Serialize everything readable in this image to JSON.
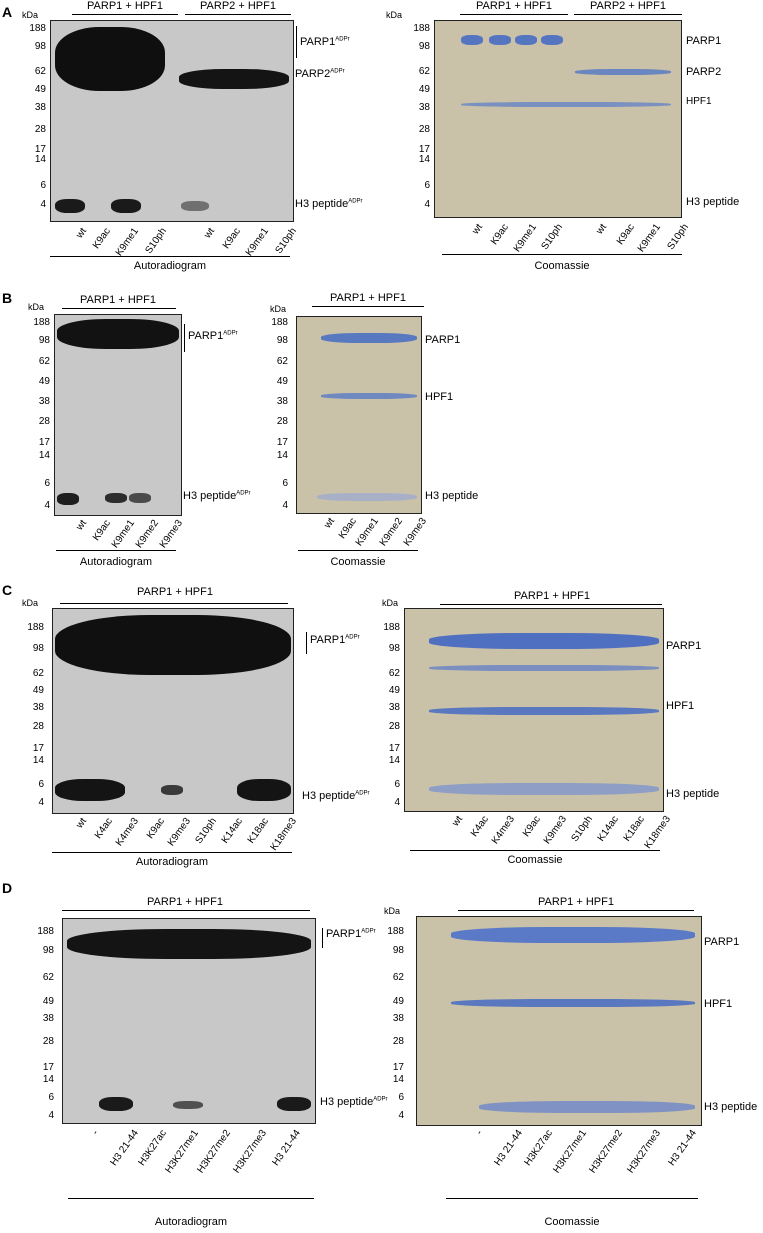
{
  "panels": [
    {
      "letter": "A",
      "left": {
        "kda": "kDa",
        "markers": [
          "188",
          "98",
          "62",
          "49",
          "38",
          "28",
          "17",
          "14",
          "6",
          "4"
        ],
        "headers": [
          "PARP1 + HPF1",
          "PARP2 + HPF1"
        ],
        "labels": [
          "PARP1",
          "PARP2",
          "H3 peptide"
        ],
        "label_sup": "ADPr",
        "lanes": [
          "wt",
          "K9ac",
          "K9me1",
          "S10ph",
          "wt",
          "K9ac",
          "K9me1",
          "S10ph"
        ],
        "footer": "Autoradiogram"
      },
      "right": {
        "kda": "kDa",
        "markers": [
          "188",
          "98",
          "62",
          "49",
          "38",
          "28",
          "17",
          "14",
          "6",
          "4"
        ],
        "headers": [
          "PARP1 + HPF1",
          "PARP2 + HPF1"
        ],
        "labels": [
          "PARP1",
          "PARP2",
          "HPF1",
          "H3 peptide"
        ],
        "lanes": [
          "wt",
          "K9ac",
          "K9me1",
          "S10ph",
          "wt",
          "K9ac",
          "K9me1",
          "S10ph"
        ],
        "footer": "Coomassie"
      }
    },
    {
      "letter": "B",
      "left": {
        "kda": "kDa",
        "markers": [
          "188",
          "98",
          "62",
          "49",
          "38",
          "28",
          "17",
          "14",
          "6",
          "4"
        ],
        "headers": [
          "PARP1 + HPF1"
        ],
        "labels": [
          "PARP1",
          "H3 peptide"
        ],
        "label_sup": "ADPr",
        "lanes": [
          "wt",
          "K9ac",
          "K9me1",
          "K9me2",
          "K9me3"
        ],
        "footer": "Autoradiogram"
      },
      "right": {
        "kda": "kDa",
        "markers": [
          "188",
          "98",
          "62",
          "49",
          "38",
          "28",
          "17",
          "14",
          "6",
          "4"
        ],
        "headers": [
          "PARP1 + HPF1"
        ],
        "labels": [
          "PARP1",
          "HPF1",
          "H3 peptide"
        ],
        "lanes": [
          "wt",
          "K9ac",
          "K9me1",
          "K9me2",
          "K9me3"
        ],
        "footer": "Coomassie"
      }
    },
    {
      "letter": "C",
      "left": {
        "kda": "kDa",
        "markers": [
          "188",
          "98",
          "62",
          "49",
          "38",
          "28",
          "17",
          "14",
          "6",
          "4"
        ],
        "headers": [
          "PARP1 + HPF1"
        ],
        "labels": [
          "PARP1",
          "H3 peptide"
        ],
        "label_sup": "ADPr",
        "lanes": [
          "wt",
          "K4ac",
          "K4me3",
          "K9ac",
          "K9me3",
          "S10ph",
          "K14ac",
          "K18ac",
          "K18me3"
        ],
        "footer": "Autoradiogram"
      },
      "right": {
        "kda": "kDa",
        "markers": [
          "188",
          "98",
          "62",
          "49",
          "38",
          "28",
          "17",
          "14",
          "6",
          "4"
        ],
        "headers": [
          "PARP1 + HPF1"
        ],
        "labels": [
          "PARP1",
          "HPF1",
          "H3 peptide"
        ],
        "lanes": [
          "wt",
          "K4ac",
          "K4me3",
          "K9ac",
          "K9me3",
          "S10ph",
          "K14ac",
          "K18ac",
          "K18me3"
        ],
        "footer": "Coomassie"
      }
    },
    {
      "letter": "D",
      "left": {
        "kda": "kDa",
        "markers": [
          "188",
          "98",
          "62",
          "49",
          "38",
          "28",
          "17",
          "14",
          "6",
          "4"
        ],
        "headers": [
          "PARP1 + HPF1"
        ],
        "labels": [
          "PARP1",
          "H3 peptide"
        ],
        "label_sup": "ADPr",
        "lanes": [
          "-",
          "H3 21-44",
          "H3K27ac",
          "H3K27me1",
          "H3K27me2",
          "H3K27me3",
          "H3 21-44"
        ],
        "footer": "Autoradiogram"
      },
      "right": {
        "kda": "kDa",
        "markers": [
          "188",
          "98",
          "62",
          "49",
          "38",
          "28",
          "17",
          "14",
          "6",
          "4"
        ],
        "headers": [
          "PARP1 + HPF1"
        ],
        "labels": [
          "PARP1",
          "HPF1",
          "H3 peptide"
        ],
        "lanes": [
          "-",
          "H3 21-44",
          "H3K27ac",
          "H3K27me1",
          "H3K27me2",
          "H3K27me3",
          "H3 21-44"
        ],
        "footer": "Coomassie"
      }
    }
  ]
}
